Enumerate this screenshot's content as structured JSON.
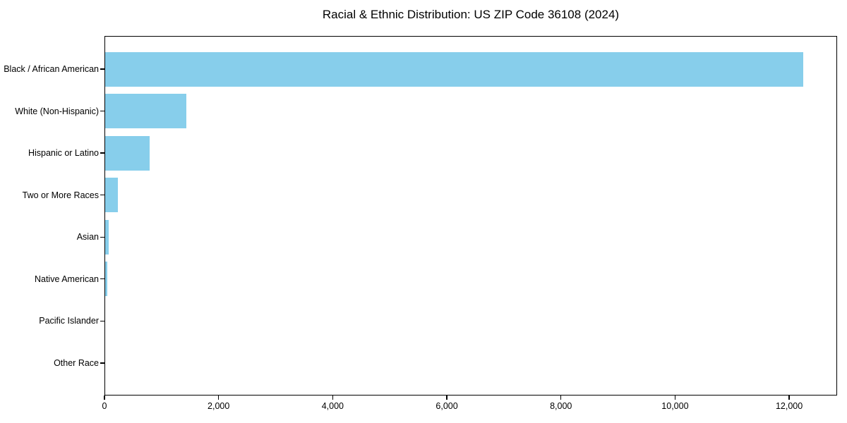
{
  "chart_data": {
    "type": "bar",
    "orientation": "horizontal",
    "title": "Racial & Ethnic Distribution: US ZIP Code 36108 (2024)",
    "categories": [
      "Black / African American",
      "White (Non-Hispanic)",
      "Hispanic or Latino",
      "Two or More Races",
      "Asian",
      "Native American",
      "Pacific Islander",
      "Other Race"
    ],
    "values": [
      12250,
      1430,
      790,
      235,
      75,
      55,
      0,
      0
    ],
    "xlabel": "",
    "ylabel": "",
    "xlim": [
      0,
      12840
    ],
    "x_ticks": {
      "values": [
        0,
        2000,
        4000,
        6000,
        8000,
        10000,
        12000
      ],
      "labels": [
        "0",
        "2,000",
        "4,000",
        "6,000",
        "8,000",
        "10,000",
        "12,000"
      ]
    },
    "grid": false,
    "legend": "none",
    "bar_color": "#87CEEB",
    "text_color": "#000000",
    "background_color": "#ffffff",
    "frame_color": "#000000"
  }
}
